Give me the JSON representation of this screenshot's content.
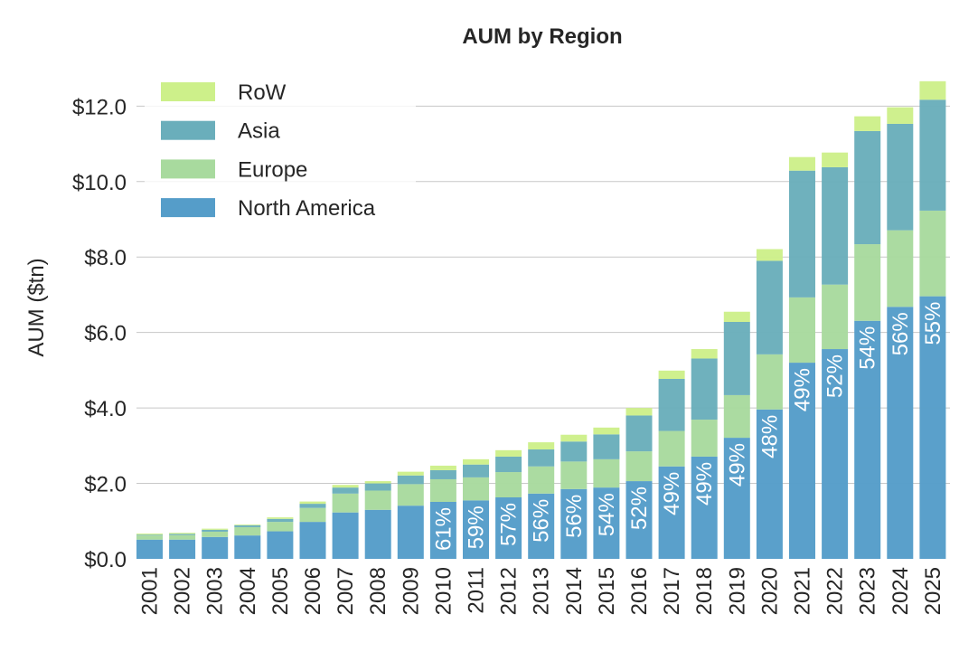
{
  "chart_data": {
    "type": "bar",
    "stacked": true,
    "title": "AUM by Region",
    "xlabel": "",
    "ylabel": "AUM ($tn)",
    "ylim": [
      0,
      12.9
    ],
    "yticks": [
      0,
      2,
      4,
      6,
      8,
      10,
      12
    ],
    "ytick_labels": [
      "$0.0",
      "$2.0",
      "$4.0",
      "$6.0",
      "$8.0",
      "$10.0",
      "$12.0"
    ],
    "grid": true,
    "legend_position": "top-left",
    "categories": [
      "2001",
      "2002",
      "2003",
      "2004",
      "2005",
      "2006",
      "2007",
      "2008",
      "2009",
      "2010",
      "2011",
      "2012",
      "2013",
      "2014",
      "2015",
      "2016",
      "2017",
      "2018",
      "2019",
      "2020",
      "2021",
      "2022",
      "2023",
      "2024",
      "2025"
    ],
    "series": [
      {
        "name": "North America",
        "color": "#559dc9",
        "values": [
          0.51,
          0.51,
          0.58,
          0.62,
          0.73,
          0.98,
          1.23,
          1.3,
          1.41,
          1.51,
          1.55,
          1.63,
          1.73,
          1.85,
          1.89,
          2.06,
          2.45,
          2.71,
          3.21,
          3.96,
          5.2,
          5.56,
          6.31,
          6.68,
          6.96
        ]
      },
      {
        "name": "Europe",
        "color": "#a8da9e",
        "values": [
          0.11,
          0.12,
          0.14,
          0.22,
          0.25,
          0.37,
          0.5,
          0.51,
          0.57,
          0.6,
          0.61,
          0.67,
          0.72,
          0.73,
          0.75,
          0.79,
          0.94,
          0.98,
          1.13,
          1.46,
          1.73,
          1.71,
          2.03,
          2.03,
          2.27
        ]
      },
      {
        "name": "Asia",
        "color": "#6aaebb",
        "values": [
          0.02,
          0.03,
          0.05,
          0.05,
          0.08,
          0.11,
          0.16,
          0.19,
          0.23,
          0.24,
          0.34,
          0.41,
          0.45,
          0.53,
          0.66,
          0.95,
          1.38,
          1.62,
          1.94,
          2.48,
          3.36,
          3.11,
          3.0,
          2.82,
          2.94
        ]
      },
      {
        "name": "RoW",
        "color": "#cdf08a",
        "values": [
          0.03,
          0.03,
          0.03,
          0.02,
          0.04,
          0.06,
          0.07,
          0.06,
          0.1,
          0.12,
          0.14,
          0.17,
          0.19,
          0.18,
          0.18,
          0.2,
          0.22,
          0.25,
          0.27,
          0.31,
          0.36,
          0.39,
          0.39,
          0.44,
          0.49
        ]
      }
    ],
    "annotations": {
      "series": "North America",
      "start_index": 9,
      "labels": [
        "61%",
        "59%",
        "57%",
        "56%",
        "56%",
        "54%",
        "52%",
        "49%",
        "49%",
        "49%",
        "48%",
        "49%",
        "52%",
        "54%",
        "56%",
        "55%"
      ]
    },
    "legend": [
      {
        "name": "RoW",
        "color": "#cdf08a"
      },
      {
        "name": "Asia",
        "color": "#6aaebb"
      },
      {
        "name": "Europe",
        "color": "#a8da9e"
      },
      {
        "name": "North America",
        "color": "#559dc9"
      }
    ]
  }
}
